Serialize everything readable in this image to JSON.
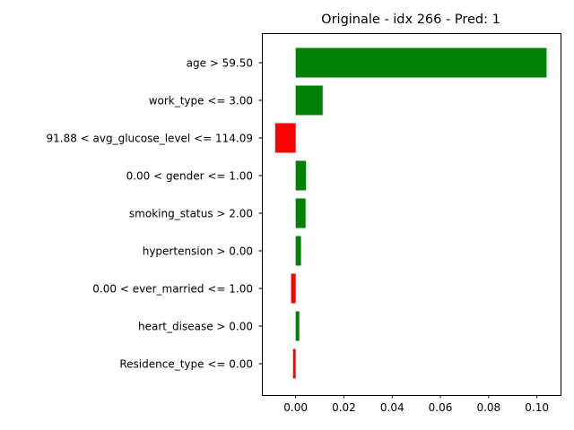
{
  "chart_data": {
    "type": "bar",
    "orientation": "horizontal",
    "title": "Originale - idx 266 - Pred: 1",
    "xlabel": "",
    "ylabel": "",
    "xlim": [
      -0.014,
      0.1098
    ],
    "xticks": [
      0.0,
      0.02,
      0.04,
      0.06,
      0.08,
      0.1
    ],
    "xtick_labels": [
      "0.00",
      "0.02",
      "0.04",
      "0.06",
      "0.08",
      "0.10"
    ],
    "categories": [
      "age > 59.50",
      "work_type <= 3.00",
      "91.88 < avg_glucose_level <= 114.09",
      "0.00 < gender <= 1.00",
      "smoking_status > 2.00",
      "hypertension > 0.00",
      "0.00 < ever_married <= 1.00",
      "heart_disease > 0.00",
      "Residence_type <= 0.00"
    ],
    "values": [
      0.104,
      0.0112,
      -0.0085,
      0.0043,
      0.0041,
      0.0022,
      -0.0019,
      0.0015,
      -0.0011
    ],
    "colors": {
      "positive": "#008000",
      "negative": "#ff0000"
    },
    "grid": false,
    "legend": "none"
  }
}
